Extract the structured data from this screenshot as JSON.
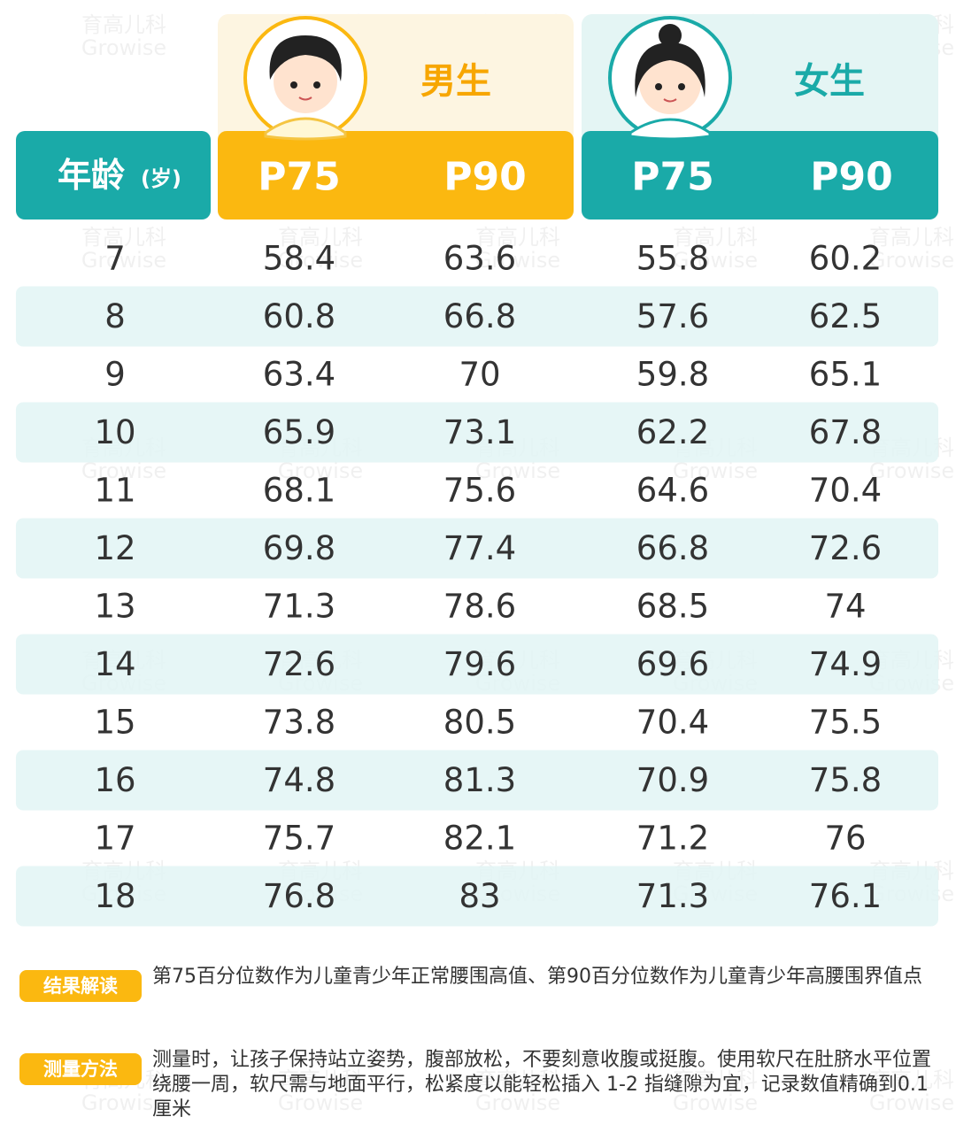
{
  "watermark": {
    "cn": "育高儿科",
    "en": "Growise"
  },
  "header": {
    "age": "年龄",
    "age_unit": "(岁)",
    "boys": "男生",
    "girls": "女生",
    "columns": [
      "P75",
      "P90",
      "P75",
      "P90"
    ]
  },
  "table": {
    "rows": [
      [
        "7",
        "58.4",
        "63.6",
        "55.8",
        "60.2"
      ],
      [
        "8",
        "60.8",
        "66.8",
        "57.6",
        "62.5"
      ],
      [
        "9",
        "63.4",
        "70",
        "59.8",
        "65.1"
      ],
      [
        "10",
        "65.9",
        "73.1",
        "62.2",
        "67.8"
      ],
      [
        "11",
        "68.1",
        "75.6",
        "64.6",
        "70.4"
      ],
      [
        "12",
        "69.8",
        "77.4",
        "66.8",
        "72.6"
      ],
      [
        "13",
        "71.3",
        "78.6",
        "68.5",
        "74"
      ],
      [
        "14",
        "72.6",
        "79.6",
        "69.6",
        "74.9"
      ],
      [
        "15",
        "73.8",
        "80.5",
        "70.4",
        "75.5"
      ],
      [
        "16",
        "74.8",
        "81.3",
        "70.9",
        "75.8"
      ],
      [
        "17",
        "75.7",
        "82.1",
        "71.2",
        "76"
      ],
      [
        "18",
        "76.8",
        "83",
        "71.3",
        "76.1"
      ]
    ]
  },
  "notes": [
    {
      "label": "结果解读",
      "text": "第75百分位数作为儿童青少年正常腰围高值、第90百分位数作为儿童青少年高腰围界值点"
    },
    {
      "label": "测量方法",
      "text": "测量时，让孩子保持站立姿势，腹部放松，不要刻意收腹或挺腹。使用软尺在肚脐水平位置绕腰一周，软尺需与地面平行，松紧度以能轻松插入 1-2 指缝隙为宜，记录数值精确到0.1厘米"
    }
  ]
}
